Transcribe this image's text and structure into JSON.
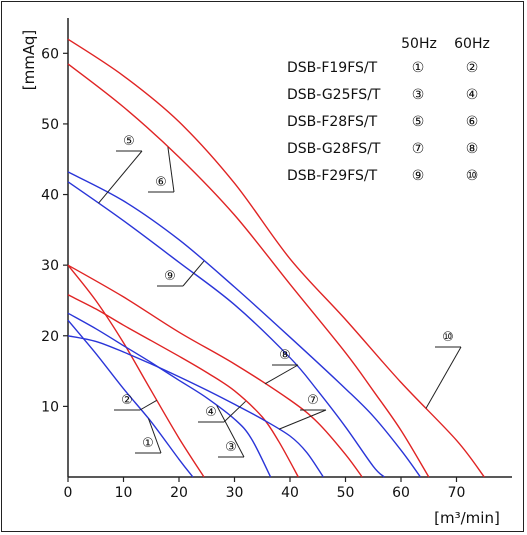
{
  "chart_data": {
    "type": "line",
    "title": "",
    "xlabel": "[m³/min]",
    "ylabel": "[mmAq]",
    "xlim": [
      0,
      80
    ],
    "ylim": [
      0,
      65
    ],
    "x_ticks": [
      "0",
      "10",
      "20",
      "30",
      "40",
      "50",
      "60",
      "70"
    ],
    "y_ticks": [
      "10",
      "20",
      "30",
      "40",
      "50",
      "60"
    ],
    "legend": {
      "headers": [
        "50Hz",
        "60Hz"
      ],
      "rows": [
        {
          "model": "DSB-F19FS/T",
          "hz50": "①",
          "hz60": "②"
        },
        {
          "model": "DSB-G25FS/T",
          "hz50": "③",
          "hz60": "④"
        },
        {
          "model": "DSB-F28FS/T",
          "hz50": "⑤",
          "hz60": "⑥"
        },
        {
          "model": "DSB-G28FS/T",
          "hz50": "⑦",
          "hz60": "⑧"
        },
        {
          "model": "DSB-F29FS/T",
          "hz50": "⑨",
          "hz60": "⑩"
        }
      ],
      "placement": "top-right"
    },
    "colors": {
      "hz50": "#2a35d8",
      "hz60": "#e02424"
    },
    "series": [
      {
        "name": "①",
        "color": "#2a35d8",
        "x": [
          0,
          5,
          10,
          15,
          20,
          22.5
        ],
        "y": [
          22.2,
          17.5,
          12.5,
          7.8,
          2.5,
          0
        ]
      },
      {
        "name": "②",
        "color": "#e02424",
        "x": [
          0,
          5,
          10,
          15,
          20,
          24.5
        ],
        "y": [
          30,
          25,
          19,
          12.2,
          5.5,
          0
        ]
      },
      {
        "name": "③",
        "color": "#2a35d8",
        "x": [
          0,
          5,
          10,
          15,
          20,
          25,
          30,
          33,
          36.5
        ],
        "y": [
          23.2,
          21,
          18.6,
          16.2,
          13.7,
          11.2,
          8.2,
          5.5,
          0
        ]
      },
      {
        "name": "④",
        "color": "#e02424",
        "x": [
          0,
          5,
          10,
          15,
          20,
          25,
          30,
          35,
          38,
          41.5
        ],
        "y": [
          25.8,
          23.8,
          21.5,
          19.3,
          17.1,
          14.8,
          12.2,
          8.5,
          5,
          0
        ]
      },
      {
        "name": "⑤",
        "color": "#2a35d8",
        "x": [
          0,
          10,
          20,
          30,
          40,
          45,
          50,
          55,
          57
        ],
        "y": [
          41.8,
          36.3,
          30.4,
          24.4,
          16.9,
          12.2,
          7.1,
          1.5,
          0
        ]
      },
      {
        "name": "⑥",
        "color": "#e02424",
        "x": [
          0,
          10,
          20,
          30,
          40,
          50,
          55,
          60,
          65
        ],
        "y": [
          58.5,
          52.4,
          45.3,
          37.1,
          27.3,
          17.6,
          12.2,
          6.6,
          0
        ]
      },
      {
        "name": "⑦",
        "color": "#2a35d8",
        "x": [
          0,
          5,
          10,
          15,
          20,
          25,
          30,
          35,
          40,
          43,
          46
        ],
        "y": [
          20,
          19.2,
          17.7,
          16,
          14.2,
          12.3,
          10.3,
          8.2,
          5.8,
          3.5,
          0
        ]
      },
      {
        "name": "⑧",
        "color": "#e02424",
        "x": [
          0,
          10,
          20,
          30,
          40,
          45,
          50,
          53
        ],
        "y": [
          30,
          25.5,
          20.5,
          16,
          10.9,
          7.7,
          3.2,
          0
        ]
      },
      {
        "name": "⑨",
        "color": "#2a35d8",
        "x": [
          0,
          10,
          20,
          30,
          40,
          50,
          55,
          60,
          63.5
        ],
        "y": [
          43.2,
          39.1,
          33.6,
          26.9,
          19.8,
          12.5,
          8.6,
          3.8,
          0
        ]
      },
      {
        "name": "⑩",
        "color": "#e02424",
        "x": [
          0,
          10,
          20,
          30,
          40,
          50,
          60,
          70,
          75
        ],
        "y": [
          62,
          56.8,
          50.3,
          41.6,
          30.9,
          22.3,
          13.4,
          5.2,
          0
        ]
      }
    ],
    "grid": false
  }
}
